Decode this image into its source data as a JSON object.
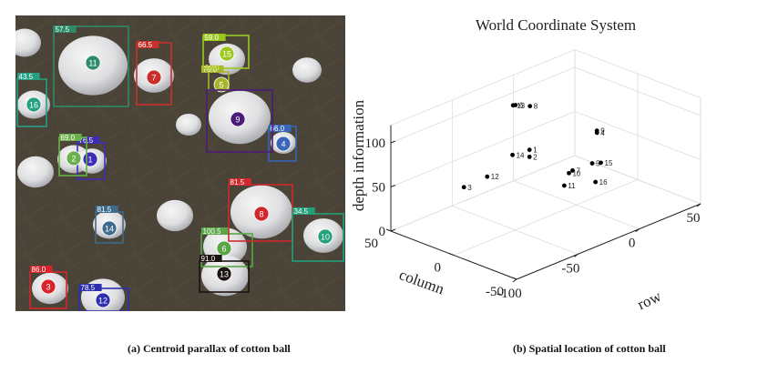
{
  "panel_a": {
    "caption": "(a) Centroid parallax of cotton ball",
    "detections": [
      {
        "id": "1",
        "parallax": "76.5",
        "color": "#3f2db5"
      },
      {
        "id": "2",
        "parallax": "69.0",
        "color": "#6ab04c"
      },
      {
        "id": "3",
        "parallax": "86.0",
        "color": "#d7262b"
      },
      {
        "id": "4",
        "parallax": "66.0",
        "color": "#3a66b8"
      },
      {
        "id": "5",
        "parallax": "75.0",
        "color": "#a6b52c"
      },
      {
        "id": "6",
        "parallax": "100.5",
        "color": "#5aa646"
      },
      {
        "id": "7",
        "parallax": "66.5",
        "color": "#c9302c"
      },
      {
        "id": "8",
        "parallax": "81.5",
        "color": "#d0282d"
      },
      {
        "id": "9",
        "parallax": "",
        "color": "#4b1c7a"
      },
      {
        "id": "10",
        "parallax": "34.5",
        "color": "#21a07a"
      },
      {
        "id": "11",
        "parallax": "57.5",
        "color": "#2c8c6a"
      },
      {
        "id": "12",
        "parallax": "78.5",
        "color": "#2e2fb0"
      },
      {
        "id": "13",
        "parallax": "91.0",
        "color": "#1c1412"
      },
      {
        "id": "14",
        "parallax": "81.5",
        "color": "#3f6c8e"
      },
      {
        "id": "15",
        "parallax": "59.0",
        "color": "#9cc81e"
      },
      {
        "id": "16",
        "parallax": "43.5",
        "color": "#25a083"
      }
    ],
    "extra_labels": [
      "59.0"
    ]
  },
  "chart_data": {
    "type": "scatter",
    "title": "World Coordinate System",
    "caption": "(b) Spatial location of cotton ball",
    "xlabel": "row",
    "ylabel": "column",
    "zlabel": "depth information",
    "xlim": [
      -100,
      50
    ],
    "ylim": [
      -50,
      50
    ],
    "zlim": [
      0,
      120
    ],
    "xticks": [
      -100,
      -50,
      0,
      50
    ],
    "yticks": [
      -50,
      0,
      50
    ],
    "zticks": [
      0,
      50,
      100
    ],
    "grid": true,
    "marker_color": "#000000",
    "points": [
      {
        "label": "1",
        "x": -29,
        "y": 9,
        "z": 74
      },
      {
        "label": "2",
        "x": -29,
        "y": 9,
        "z": 66
      },
      {
        "label": "3",
        "x": -105,
        "y": -13,
        "z": 87
      },
      {
        "label": "4",
        "x": 26,
        "y": 9,
        "z": 62
      },
      {
        "label": "5",
        "x": 18,
        "y": 5,
        "z": 34
      },
      {
        "label": "6",
        "x": -23,
        "y": 26,
        "z": 112
      },
      {
        "label": "7",
        "x": 2,
        "y": 5,
        "z": 35
      },
      {
        "label": "8",
        "x": -3,
        "y": 34,
        "z": 95
      },
      {
        "label": "9",
        "x": 28,
        "y": 11,
        "z": 62
      },
      {
        "label": "10",
        "x": -3,
        "y": 3,
        "z": 36
      },
      {
        "label": "11",
        "x": -14,
        "y": -4,
        "z": 32
      },
      {
        "label": "12",
        "x": -85,
        "y": -12,
        "z": 87
      },
      {
        "label": "13",
        "x": -27,
        "y": 24,
        "z": 115
      },
      {
        "label": "14",
        "x": -50,
        "y": 2,
        "z": 84
      },
      {
        "label": "15",
        "x": 23,
        "y": 3,
        "z": 33
      },
      {
        "label": "16",
        "x": -8,
        "y": -23,
        "z": 43
      }
    ]
  }
}
